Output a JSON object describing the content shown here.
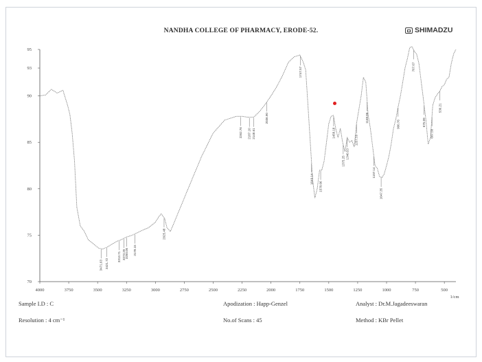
{
  "header": {
    "title": "NANDHA COLLEGE OF PHARMACY, ERODE-52.",
    "brand": "SHIMADZU"
  },
  "footer": {
    "sample_id": "Sample I.D : C",
    "resolution": "Resolution : 4 cm⁻¹",
    "apodization": "Apodization : Happ-Genzel",
    "scans": "No.of Scans : 45",
    "analyst": "Analyst : Dr.M.Jagadeeswaran",
    "method": "Method : KBr Pellet"
  },
  "colors": {
    "trace": "#8a8a8a",
    "axis": "#555555",
    "marker": "#e02020"
  },
  "chart_data": {
    "type": "line",
    "title": "",
    "xlabel": "1/cm",
    "ylabel": "",
    "xlim": [
      4000,
      400
    ],
    "ylim": [
      70,
      95
    ],
    "x_reversed": true,
    "grid": false,
    "x_ticks": [
      "4000",
      "3750",
      "3500",
      "3250",
      "3000",
      "2750",
      "2500",
      "2250",
      "2000",
      "1750",
      "1500",
      "1250",
      "1000",
      "750",
      "500"
    ],
    "y_ticks": [
      "95",
      "93",
      "90",
      "85",
      "80",
      "75",
      "70"
    ],
    "series": [
      {
        "x": [
          4000,
          3950,
          3900,
          3850,
          3800,
          3760,
          3740,
          3720,
          3700,
          3680,
          3650,
          3620,
          3580,
          3550,
          3520,
          3490,
          3460,
          3420,
          3380,
          3340,
          3300,
          3250,
          3200,
          3150,
          3100,
          3060,
          3000,
          2970,
          2950,
          2920,
          2900,
          2870,
          2800,
          2700,
          2600,
          2500,
          2400,
          2300,
          2250,
          2200,
          2150,
          2100,
          2050,
          2000,
          1950,
          1900,
          1850,
          1800,
          1750,
          1720,
          1700,
          1680,
          1660,
          1640,
          1620,
          1600,
          1580,
          1560,
          1540,
          1520,
          1500,
          1480,
          1460,
          1440,
          1420,
          1400,
          1380,
          1360,
          1340,
          1320,
          1300,
          1280,
          1260,
          1240,
          1220,
          1200,
          1180,
          1160,
          1140,
          1120,
          1100,
          1080,
          1060,
          1040,
          1020,
          1000,
          980,
          960,
          940,
          920,
          900,
          880,
          860,
          840,
          820,
          800,
          780,
          760,
          740,
          720,
          700,
          680,
          660,
          640,
          620,
          600,
          580,
          560,
          540,
          520,
          500,
          480,
          460,
          440,
          420,
          400
        ],
        "y": [
          90.0,
          90.1,
          90.7,
          90.3,
          90.6,
          89.0,
          88.0,
          86.0,
          83.0,
          78.0,
          76.0,
          75.5,
          74.5,
          74.2,
          73.9,
          73.6,
          73.5,
          73.7,
          74.0,
          74.3,
          74.5,
          74.8,
          75.0,
          75.3,
          75.6,
          75.8,
          76.4,
          77.0,
          77.3,
          76.8,
          75.8,
          75.4,
          77.5,
          80.5,
          83.5,
          86.0,
          87.4,
          87.8,
          87.8,
          87.7,
          87.7,
          88.3,
          89.1,
          90.0,
          91.0,
          92.2,
          93.6,
          94.2,
          94.4,
          93.6,
          92.8,
          89.0,
          85.0,
          81.0,
          79.0,
          80.0,
          82.0,
          82.0,
          83.0,
          85.0,
          87.0,
          87.8,
          87.9,
          86.5,
          85.5,
          86.5,
          85.0,
          84.0,
          85.5,
          85.0,
          85.2,
          84.5,
          87.0,
          88.5,
          90.0,
          92.0,
          91.5,
          88.0,
          86.5,
          84.5,
          82.5,
          82.2,
          81.3,
          81.2,
          81.6,
          82.5,
          83.5,
          84.8,
          86.5,
          87.5,
          88.8,
          90.0,
          91.5,
          93.0,
          94.0,
          95.2,
          95.3,
          94.8,
          94.5,
          93.5,
          91.5,
          89.5,
          87.5,
          84.8,
          85.5,
          89.0,
          89.8,
          90.2,
          90.5,
          91.0,
          91.2,
          91.8,
          92.0,
          93.5,
          94.5,
          95.0
        ]
      }
    ],
    "peak_labels": [
      {
        "x": 3470,
        "label": "3471.63"
      },
      {
        "x": 3421,
        "label": "3421.72"
      },
      {
        "x": 3315,
        "label": "3313.71"
      },
      {
        "x": 3273,
        "label": "3273.20"
      },
      {
        "x": 3250,
        "label": "3250.05"
      },
      {
        "x": 3178,
        "label": "3178.15"
      },
      {
        "x": 2925,
        "label": "2925.48"
      },
      {
        "x": 2262,
        "label": "2262.76"
      },
      {
        "x": 2187,
        "label": "2187.10"
      },
      {
        "x": 2150,
        "label": "2148.61"
      },
      {
        "x": 2036,
        "label": "2036.90"
      },
      {
        "x": 1747,
        "label": "1747.57"
      },
      {
        "x": 1649,
        "label": "1649.14"
      },
      {
        "x": 1570,
        "label": "1570.06"
      },
      {
        "x": 1458,
        "label": "1458.18"
      },
      {
        "x": 1375,
        "label": "1375.25"
      },
      {
        "x": 1340,
        "label": "1340.53"
      },
      {
        "x": 1260,
        "label": "1257.59"
      },
      {
        "x": 1168,
        "label": "1168.86"
      },
      {
        "x": 1110,
        "label": "1107.14"
      },
      {
        "x": 1047,
        "label": "1047.35"
      },
      {
        "x": 900,
        "label": "900.76"
      },
      {
        "x": 767,
        "label": "767.67"
      },
      {
        "x": 675,
        "label": "675.09"
      },
      {
        "x": 607,
        "label": "607.58"
      },
      {
        "x": 538,
        "label": "536.21"
      }
    ]
  }
}
